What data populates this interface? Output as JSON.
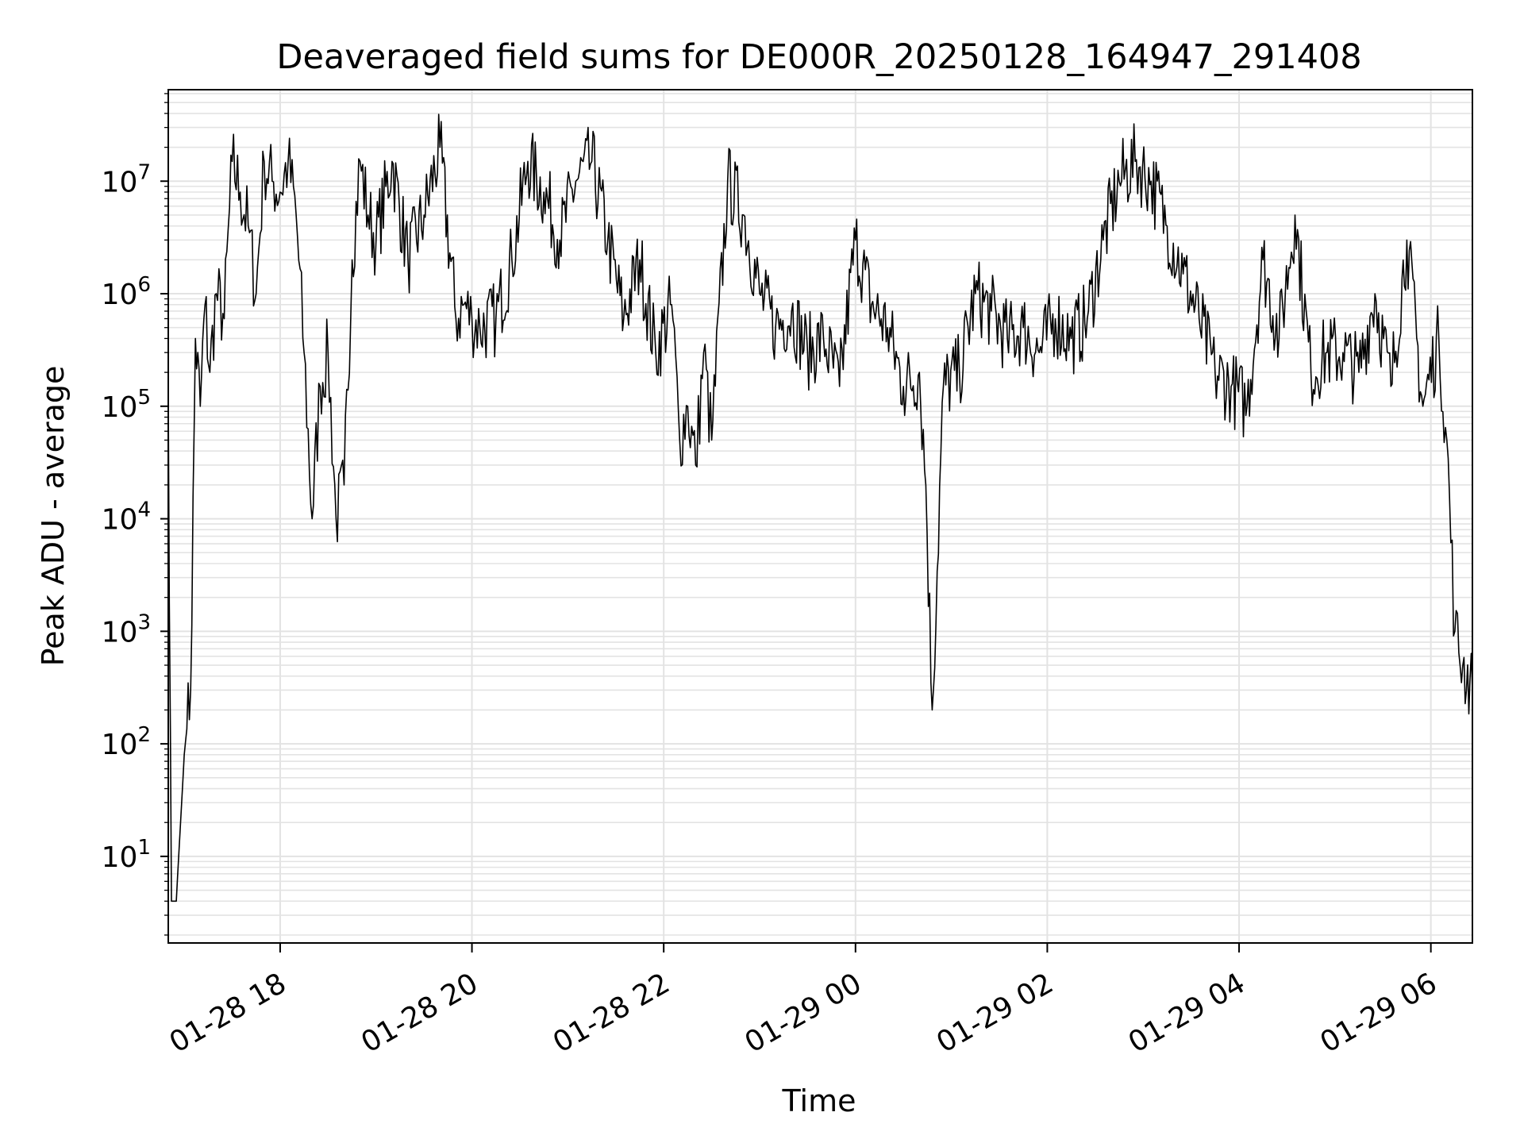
{
  "chart_data": {
    "type": "line",
    "title": "Deaveraged field sums for DE000R_20250128_164947_291408",
    "xlabel": "Time",
    "ylabel": "Peak ADU - average",
    "yscale": "log",
    "ylim": [
      1.7,
      65000000
    ],
    "xlim": [
      "2025-01-28 16:50",
      "2025-01-29 06:26"
    ],
    "grid": true,
    "x_ticks": [
      "01-28 18",
      "01-28 20",
      "01-28 22",
      "01-29 00",
      "01-29 02",
      "01-29 04",
      "01-29 06"
    ],
    "y_ticks": [
      {
        "base": "10",
        "exp": "1"
      },
      {
        "base": "10",
        "exp": "2"
      },
      {
        "base": "10",
        "exp": "3"
      },
      {
        "base": "10",
        "exp": "4"
      },
      {
        "base": "10",
        "exp": "5"
      },
      {
        "base": "10",
        "exp": "6"
      },
      {
        "base": "10",
        "exp": "7"
      }
    ],
    "line_color": "#000000",
    "series": [
      {
        "x": [
          "2025-01-28 16:50",
          "2025-01-28 16:52",
          "2025-01-28 16:55",
          "2025-01-28 17:00",
          "2025-01-28 17:04",
          "2025-01-28 17:07",
          "2025-01-28 17:10",
          "2025-01-28 17:13",
          "2025-01-28 17:16",
          "2025-01-28 17:20",
          "2025-01-28 17:25",
          "2025-01-28 17:30",
          "2025-01-28 17:35",
          "2025-01-28 17:40",
          "2025-01-28 17:45",
          "2025-01-28 17:50",
          "2025-01-28 17:55",
          "2025-01-28 18:00",
          "2025-01-28 18:05",
          "2025-01-28 18:10",
          "2025-01-28 18:15",
          "2025-01-28 18:20",
          "2025-01-28 18:25",
          "2025-01-28 18:30",
          "2025-01-28 18:35",
          "2025-01-28 18:40",
          "2025-01-28 18:45",
          "2025-01-28 18:50",
          "2025-01-28 18:55",
          "2025-01-28 19:00",
          "2025-01-28 19:10",
          "2025-01-28 19:20",
          "2025-01-28 19:30",
          "2025-01-28 19:40",
          "2025-01-28 19:50",
          "2025-01-28 19:55",
          "2025-01-28 20:00",
          "2025-01-28 20:05",
          "2025-01-28 20:15",
          "2025-01-28 20:25",
          "2025-01-28 20:35",
          "2025-01-28 20:45",
          "2025-01-28 20:55",
          "2025-01-28 21:05",
          "2025-01-28 21:15",
          "2025-01-28 21:25",
          "2025-01-28 21:35",
          "2025-01-28 21:45",
          "2025-01-28 21:55",
          "2025-01-28 22:05",
          "2025-01-28 22:10",
          "2025-01-28 22:15",
          "2025-01-28 22:20",
          "2025-01-28 22:25",
          "2025-01-28 22:30",
          "2025-01-28 22:40",
          "2025-01-28 22:50",
          "2025-01-28 23:00",
          "2025-01-28 23:10",
          "2025-01-28 23:20",
          "2025-01-28 23:30",
          "2025-01-28 23:40",
          "2025-01-28 23:50",
          "2025-01-29 00:00",
          "2025-01-29 00:10",
          "2025-01-29 00:20",
          "2025-01-29 00:30",
          "2025-01-29 00:40",
          "2025-01-29 00:44",
          "2025-01-29 00:48",
          "2025-01-29 00:55",
          "2025-01-29 01:05",
          "2025-01-29 01:15",
          "2025-01-29 01:25",
          "2025-01-29 01:35",
          "2025-01-29 01:45",
          "2025-01-29 01:55",
          "2025-01-29 02:05",
          "2025-01-29 02:15",
          "2025-01-29 02:25",
          "2025-01-29 02:35",
          "2025-01-29 02:45",
          "2025-01-29 02:55",
          "2025-01-29 03:05",
          "2025-01-29 03:15",
          "2025-01-29 03:25",
          "2025-01-29 03:35",
          "2025-01-29 03:45",
          "2025-01-29 03:55",
          "2025-01-29 04:05",
          "2025-01-29 04:15",
          "2025-01-29 04:25",
          "2025-01-29 04:35",
          "2025-01-29 04:45",
          "2025-01-29 04:55",
          "2025-01-29 05:05",
          "2025-01-29 05:15",
          "2025-01-29 05:25",
          "2025-01-29 05:35",
          "2025-01-29 05:45",
          "2025-01-29 05:55",
          "2025-01-29 06:05",
          "2025-01-29 06:10",
          "2025-01-29 06:15",
          "2025-01-29 06:20",
          "2025-01-29 06:26"
        ],
        "y": [
          130000,
          4,
          4,
          80,
          300,
          400000,
          100000,
          800000,
          200000,
          1000000,
          600000,
          15000000,
          8000000,
          4000000,
          1000000,
          15000000,
          10000000,
          8000000,
          15000000,
          5000000,
          300000,
          10000,
          150000,
          300000,
          10000,
          20000,
          2000000,
          15000000,
          5000000,
          3000000,
          15000000,
          2000000,
          5000000,
          20000000,
          600000,
          800000,
          600000,
          500000,
          600000,
          2000000,
          15000000,
          8000000,
          3000000,
          10000000,
          15000000,
          3000000,
          600000,
          2000000,
          300000,
          800000,
          50000,
          100000,
          30000,
          300000,
          50000,
          10000000,
          5000000,
          1000000,
          500000,
          700000,
          300000,
          400000,
          150000,
          3000000,
          800000,
          500000,
          150000,
          200000,
          20000,
          200,
          150000,
          200000,
          1000000,
          700000,
          400000,
          500000,
          300000,
          600000,
          400000,
          600000,
          3000000,
          10000000,
          15000000,
          10000000,
          4000000,
          1500000,
          600000,
          200000,
          150000,
          100000,
          2000000,
          400000,
          5000000,
          200000,
          300000,
          300000,
          200000,
          1000000,
          150000,
          3000000,
          100000,
          400000,
          50000,
          1000,
          500,
          300
        ]
      }
    ]
  }
}
